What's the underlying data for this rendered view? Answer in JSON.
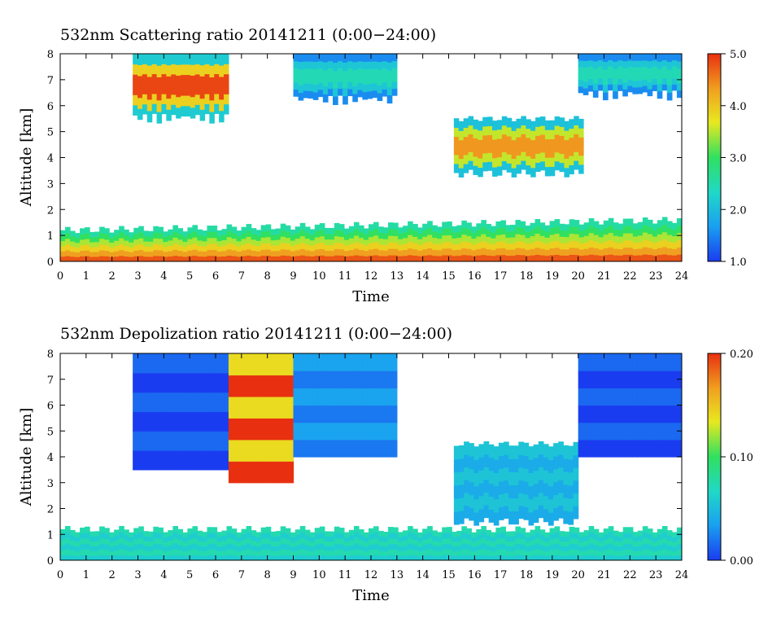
{
  "chart_data": [
    {
      "type": "heatmap",
      "title": "532nm Scattering ratio  20141211 (0:00−24:00)",
      "xlabel": "Time",
      "ylabel": "Altitude [km]",
      "xlim": [
        0,
        24
      ],
      "ylim": [
        0,
        8
      ],
      "x_ticks": [
        "0",
        "1",
        "2",
        "3",
        "4",
        "5",
        "6",
        "7",
        "8",
        "9",
        "10",
        "11",
        "12",
        "13",
        "14",
        "15",
        "16",
        "17",
        "18",
        "19",
        "20",
        "21",
        "22",
        "23",
        "24"
      ],
      "y_ticks": [
        "0",
        "1",
        "2",
        "3",
        "4",
        "5",
        "6",
        "7",
        "8"
      ],
      "colorbar": {
        "range": [
          1.0,
          5.0
        ],
        "ticks": [
          "1.0",
          "2.0",
          "3.0",
          "4.0",
          "5.0"
        ],
        "colormap": [
          "#1a3cf0",
          "#1aa0f0",
          "#20d8c8",
          "#30e060",
          "#e8e820",
          "#f0a020",
          "#e83010"
        ]
      },
      "features": [
        {
          "kind": "boundary_layer",
          "t_start": 0,
          "t_end": 24,
          "top_km_start": 1.2,
          "top_km_end": 1.6,
          "peak_ratio": 5.0
        },
        {
          "kind": "cirrus",
          "t_start": 2.8,
          "t_end": 6.5,
          "base_km": 5.3,
          "top_km": 8.0,
          "peak_ratio": 5.0
        },
        {
          "kind": "cirrus",
          "t_start": 9.0,
          "t_end": 13.0,
          "base_km": 6.0,
          "top_km": 8.0,
          "peak_ratio": 2.5
        },
        {
          "kind": "mid_cloud",
          "t_start": 15.2,
          "t_end": 20.2,
          "base_km": 3.4,
          "top_km": 5.5,
          "peak_ratio": 4.5
        },
        {
          "kind": "cirrus",
          "t_start": 20.0,
          "t_end": 24.0,
          "base_km": 6.2,
          "top_km": 8.0,
          "peak_ratio": 2.5
        }
      ]
    },
    {
      "type": "heatmap",
      "title": "532nm Depolization ratio  20141211 (0:00−24:00)",
      "xlabel": "Time",
      "ylabel": "Altitude [km]",
      "xlim": [
        0,
        24
      ],
      "ylim": [
        0,
        8
      ],
      "x_ticks": [
        "0",
        "1",
        "2",
        "3",
        "4",
        "5",
        "6",
        "7",
        "8",
        "9",
        "10",
        "11",
        "12",
        "13",
        "14",
        "15",
        "16",
        "17",
        "18",
        "19",
        "20",
        "21",
        "22",
        "23",
        "24"
      ],
      "y_ticks": [
        "0",
        "1",
        "2",
        "3",
        "4",
        "5",
        "6",
        "7",
        "8"
      ],
      "colorbar": {
        "range": [
          0.0,
          0.2
        ],
        "ticks": [
          "0.00",
          "0.10",
          "0.20"
        ],
        "colormap": [
          "#1a3cf0",
          "#1aa0f0",
          "#20d8c8",
          "#30e060",
          "#e8e820",
          "#f0a020",
          "#e83010"
        ]
      },
      "features": [
        {
          "kind": "boundary_layer",
          "t_start": 0,
          "t_end": 24,
          "top_km": 1.2,
          "depol": 0.06
        },
        {
          "kind": "ice_cloud",
          "t_start": 2.8,
          "t_end": 6.5,
          "base_km": 3.5,
          "top_km": 8.0,
          "depol": 0.0
        },
        {
          "kind": "noise_region",
          "t_start": 6.5,
          "t_end": 9.0,
          "base_km": 3.0,
          "top_km": 8.0,
          "depol": 0.2
        },
        {
          "kind": "ice_cloud",
          "t_start": 9.0,
          "t_end": 13.0,
          "base_km": 4.0,
          "top_km": 8.0,
          "depol": 0.02
        },
        {
          "kind": "mid_cloud",
          "t_start": 15.2,
          "t_end": 20.0,
          "base_km": 1.5,
          "top_km": 4.5,
          "depol": 0.04
        },
        {
          "kind": "ice_cloud",
          "t_start": 20.0,
          "t_end": 24.0,
          "base_km": 4.0,
          "top_km": 8.0,
          "depol": 0.0
        }
      ]
    }
  ]
}
